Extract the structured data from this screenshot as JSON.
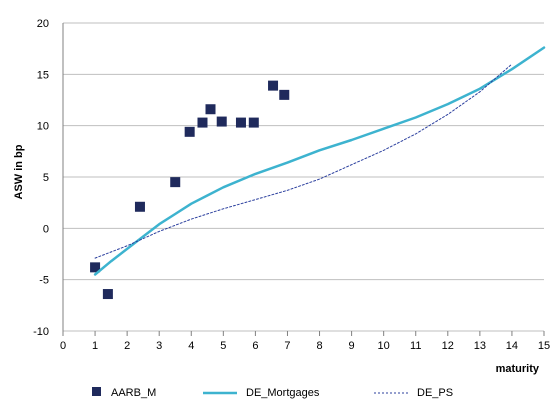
{
  "chart_data": {
    "type": "scatter",
    "xlabel": "maturity",
    "ylabel": "ASW in bp",
    "xlim": [
      0,
      15
    ],
    "ylim": [
      -10,
      20
    ],
    "x_ticks": [
      0,
      1,
      2,
      3,
      4,
      5,
      6,
      7,
      8,
      9,
      10,
      11,
      12,
      13,
      14,
      15
    ],
    "y_ticks": [
      -10,
      -5,
      0,
      5,
      10,
      15,
      20
    ],
    "grid": "horizontal",
    "legend": "bottom",
    "series": [
      {
        "name": "AARB_M",
        "kind": "markers",
        "color": "#1f2a5c",
        "points": [
          {
            "x": 1.0,
            "y": -3.8
          },
          {
            "x": 1.4,
            "y": -6.4
          },
          {
            "x": 2.4,
            "y": 2.1
          },
          {
            "x": 3.5,
            "y": 4.5
          },
          {
            "x": 3.95,
            "y": 9.4
          },
          {
            "x": 4.35,
            "y": 10.3
          },
          {
            "x": 4.6,
            "y": 11.6
          },
          {
            "x": 4.95,
            "y": 10.4
          },
          {
            "x": 5.55,
            "y": 10.3
          },
          {
            "x": 5.95,
            "y": 10.3
          },
          {
            "x": 6.55,
            "y": 13.9
          },
          {
            "x": 6.9,
            "y": 13.0
          }
        ]
      },
      {
        "name": "DE_Mortgages",
        "kind": "solid-line",
        "color": "#3db3cf",
        "points": [
          {
            "x": 1.0,
            "y": -4.5
          },
          {
            "x": 1.5,
            "y": -3.2
          },
          {
            "x": 2.0,
            "y": -2.0
          },
          {
            "x": 2.5,
            "y": -0.8
          },
          {
            "x": 3.0,
            "y": 0.4
          },
          {
            "x": 3.5,
            "y": 1.4
          },
          {
            "x": 4.0,
            "y": 2.4
          },
          {
            "x": 4.5,
            "y": 3.2
          },
          {
            "x": 5.0,
            "y": 4.0
          },
          {
            "x": 6.0,
            "y": 5.3
          },
          {
            "x": 7.0,
            "y": 6.4
          },
          {
            "x": 8.0,
            "y": 7.6
          },
          {
            "x": 9.0,
            "y": 8.6
          },
          {
            "x": 10.0,
            "y": 9.7
          },
          {
            "x": 11.0,
            "y": 10.8
          },
          {
            "x": 12.0,
            "y": 12.1
          },
          {
            "x": 13.0,
            "y": 13.6
          },
          {
            "x": 14.0,
            "y": 15.5
          },
          {
            "x": 15.0,
            "y": 17.6
          }
        ]
      },
      {
        "name": "DE_PS",
        "kind": "dotted-line",
        "color": "#2b3f9e",
        "points": [
          {
            "x": 1.0,
            "y": -2.9
          },
          {
            "x": 2.0,
            "y": -1.7
          },
          {
            "x": 3.0,
            "y": -0.3
          },
          {
            "x": 4.0,
            "y": 0.9
          },
          {
            "x": 5.0,
            "y": 1.9
          },
          {
            "x": 6.0,
            "y": 2.8
          },
          {
            "x": 7.0,
            "y": 3.7
          },
          {
            "x": 8.0,
            "y": 4.8
          },
          {
            "x": 9.0,
            "y": 6.2
          },
          {
            "x": 10.0,
            "y": 7.6
          },
          {
            "x": 11.0,
            "y": 9.2
          },
          {
            "x": 12.0,
            "y": 11.1
          },
          {
            "x": 13.0,
            "y": 13.3
          },
          {
            "x": 14.0,
            "y": 16.0
          }
        ]
      }
    ]
  }
}
